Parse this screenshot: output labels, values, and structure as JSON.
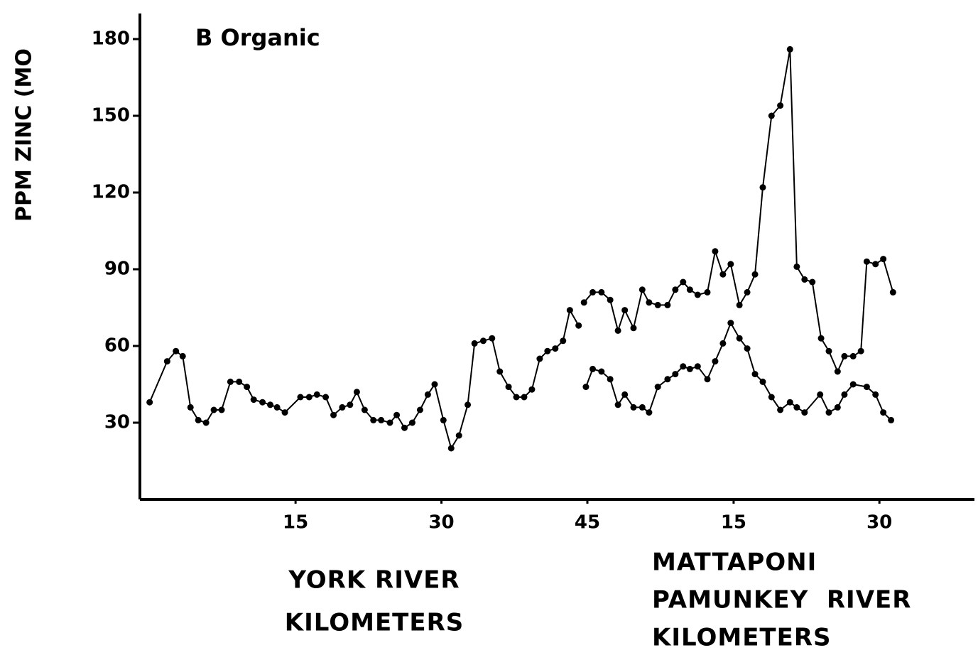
{
  "chart_data": {
    "type": "line",
    "ylabel": "PPM ZINC (MO",
    "annotation": "B Organic",
    "color": "#000000",
    "ylim": [
      0,
      190
    ],
    "yticks": [
      30,
      60,
      90,
      120,
      150,
      180
    ],
    "xaxes": [
      {
        "label": [
          "YORK RIVER",
          "KILOMETERS"
        ],
        "xlim": [
          -1,
          45
        ],
        "xticks": [
          15,
          30,
          45
        ]
      },
      {
        "label": [
          "MATTAPONI",
          "PAMUNKEY  RIVER",
          "KILOMETERS"
        ],
        "xlim": [
          -1,
          40
        ],
        "xticks": [
          15,
          30
        ]
      }
    ],
    "series": [
      {
        "xaxis": 0,
        "x": [
          0,
          1.8,
          2.7,
          3.4,
          4.2,
          5,
          5.8,
          6.6,
          7.4,
          8.3,
          9.2,
          10,
          10.7,
          11.6,
          12.4,
          13.1,
          13.9,
          15.5,
          16.4,
          17.2,
          18.1,
          18.9,
          19.8,
          20.6,
          21.3,
          22.1,
          23,
          23.8,
          24.7,
          25.4,
          26.2,
          27,
          27.8,
          28.6,
          29.3,
          30.2,
          31,
          31.8,
          32.7,
          33.4,
          34.3,
          35.2,
          36,
          36.9,
          37.7,
          38.5,
          39.3,
          40.1,
          40.9,
          41.7,
          42.5,
          43.2,
          44.1
        ],
        "values": [
          38,
          54,
          58,
          56,
          36,
          31,
          30,
          35,
          35,
          46,
          46,
          44,
          39,
          38,
          37,
          36,
          34,
          40,
          40,
          41,
          40,
          33,
          36,
          37,
          42,
          35,
          31,
          31,
          30,
          33,
          28,
          30,
          35,
          41,
          45,
          31,
          20,
          25,
          37,
          61,
          62,
          63,
          50,
          44,
          40,
          40,
          43,
          55,
          58,
          59,
          62,
          74,
          68
        ]
      },
      {
        "xaxis": 1,
        "x": [
          -0.4,
          0.5,
          1.4,
          2.3,
          3.1,
          3.8,
          4.7,
          5.6,
          6.3,
          7.2,
          8.2,
          9,
          9.8,
          10.5,
          11.3,
          12.3,
          13.1,
          13.9,
          14.7,
          15.6,
          16.4,
          17.2,
          18,
          18.9,
          19.8,
          20.8,
          21.5,
          22.3,
          23.1,
          24,
          24.8,
          25.7,
          26.4,
          27.3,
          28.1,
          28.7,
          29.6,
          30.4,
          31.4
        ],
        "values": [
          77,
          81,
          81,
          78,
          66,
          74,
          67,
          82,
          77,
          76,
          76,
          82,
          85,
          82,
          80,
          81,
          97,
          88,
          92,
          76,
          81,
          88,
          122,
          150,
          154,
          176,
          91,
          86,
          85,
          63,
          58,
          50,
          56,
          56,
          58,
          93,
          92,
          94,
          81
        ]
      },
      {
        "xaxis": 1,
        "x": [
          -0.2,
          0.5,
          1.4,
          2.3,
          3.1,
          3.8,
          4.7,
          5.6,
          6.3,
          7.2,
          8.2,
          9,
          9.8,
          10.5,
          11.3,
          12.3,
          13.1,
          13.9,
          14.7,
          15.6,
          16.4,
          17.2,
          18,
          18.9,
          19.8,
          20.8,
          21.5,
          22.3,
          23.9,
          24.8,
          25.7,
          26.4,
          27.3,
          28.7,
          29.6,
          30.4,
          31.2
        ],
        "values": [
          44,
          51,
          50,
          47,
          37,
          41,
          36,
          36,
          34,
          44,
          47,
          49,
          52,
          51,
          52,
          47,
          54,
          61,
          69,
          63,
          59,
          49,
          46,
          40,
          35,
          38,
          36,
          34,
          41,
          34,
          36,
          41,
          45,
          44,
          41,
          34,
          31
        ]
      }
    ]
  }
}
